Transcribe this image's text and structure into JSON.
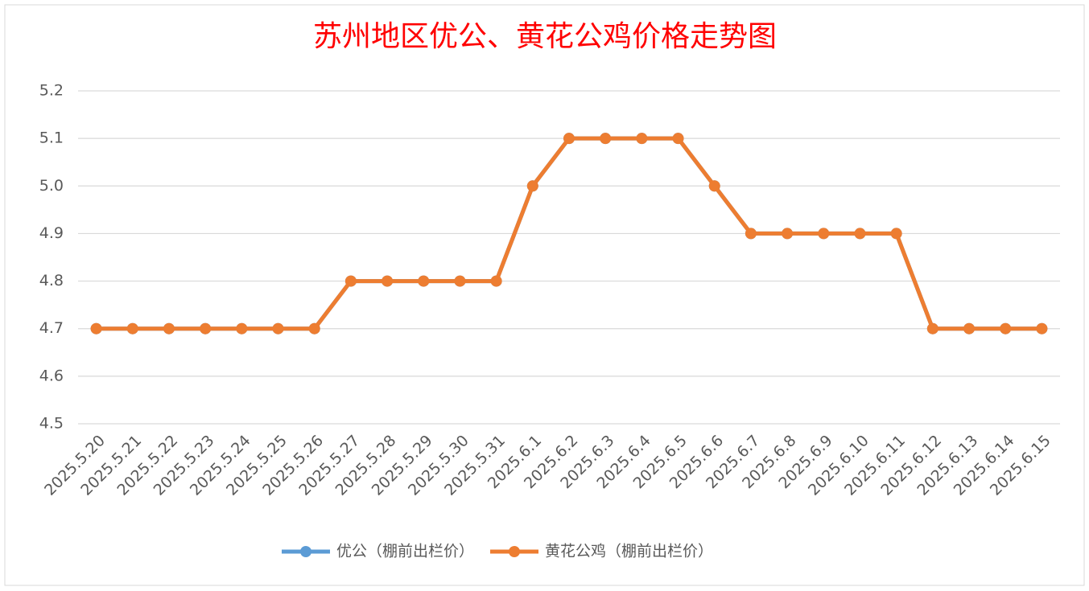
{
  "chart_data": {
    "type": "line",
    "title": "苏州地区优公、黄花公鸡价格走势图",
    "categories": [
      "2025.5.20",
      "2025.5.21",
      "2025.5.22",
      "2025.5.23",
      "2025.5.24",
      "2025.5.25",
      "2025.5.26",
      "2025.5.27",
      "2025.5.28",
      "2025.5.29",
      "2025.5.30",
      "2025.5.31",
      "2025.6.1",
      "2025.6.2",
      "2025.6.3",
      "2025.6.4",
      "2025.6.5",
      "2025.6.6",
      "2025.6.7",
      "2025.6.8",
      "2025.6.9",
      "2025.6.10",
      "2025.6.11",
      "2025.6.12",
      "2025.6.13",
      "2025.6.14",
      "2025.6.15"
    ],
    "series": [
      {
        "name": "优公（棚前出栏价）",
        "color": "#5b9bd5",
        "values": [
          4.7,
          4.7,
          4.7,
          4.7,
          4.7,
          4.7,
          4.7,
          4.8,
          4.8,
          4.8,
          4.8,
          4.8,
          5.0,
          5.1,
          5.1,
          5.1,
          5.1,
          5.0,
          4.9,
          4.9,
          4.9,
          4.9,
          4.9,
          4.7,
          4.7,
          4.7,
          4.7
        ]
      },
      {
        "name": "黄花公鸡（棚前出栏价）",
        "color": "#ed7d31",
        "values": [
          4.7,
          4.7,
          4.7,
          4.7,
          4.7,
          4.7,
          4.7,
          4.8,
          4.8,
          4.8,
          4.8,
          4.8,
          5.0,
          5.1,
          5.1,
          5.1,
          5.1,
          5.0,
          4.9,
          4.9,
          4.9,
          4.9,
          4.9,
          4.7,
          4.7,
          4.7,
          4.7
        ]
      }
    ],
    "ylim": [
      4.5,
      5.2
    ],
    "yticks": [
      4.5,
      4.6,
      4.7,
      4.8,
      4.9,
      {
        "value": 5,
        "label": "5.0"
      },
      5.1,
      5.2
    ],
    "grid": true,
    "legend": "bottom"
  }
}
